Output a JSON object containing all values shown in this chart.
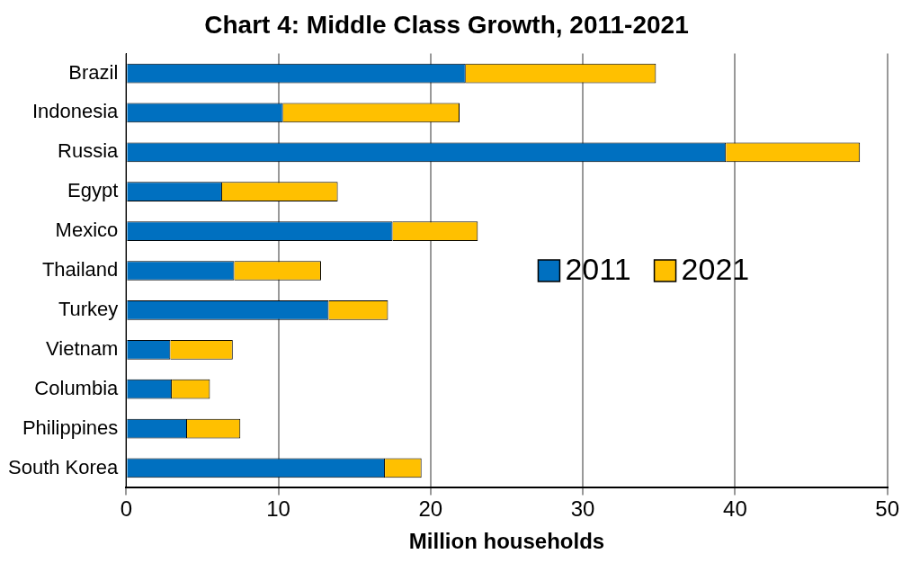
{
  "chart_data": {
    "type": "bar",
    "orientation": "horizontal",
    "stacked": true,
    "title": "Chart 4: Middle Class Growth, 2011-2021",
    "xlabel": "Million households",
    "categories": [
      "Brazil",
      "Indonesia",
      "Russia",
      "Egypt",
      "Mexico",
      "Thailand",
      "Turkey",
      "Vietnam",
      "Columbia",
      "Philippines",
      "South Korea"
    ],
    "series": [
      {
        "name": "2011",
        "color": "#0070c0",
        "values": [
          22.3,
          10.3,
          39.4,
          6.3,
          17.5,
          7.1,
          13.3,
          2.9,
          3.0,
          4.0,
          17.0
        ]
      },
      {
        "name": "2021",
        "color": "#ffc000",
        "values": [
          12.5,
          11.6,
          8.8,
          7.6,
          5.6,
          5.7,
          3.9,
          4.1,
          2.5,
          3.5,
          2.4
        ]
      }
    ],
    "xlim": [
      0,
      50
    ],
    "xticks": [
      0,
      10,
      20,
      30,
      40,
      50
    ],
    "grid": "x",
    "legend": "right"
  }
}
